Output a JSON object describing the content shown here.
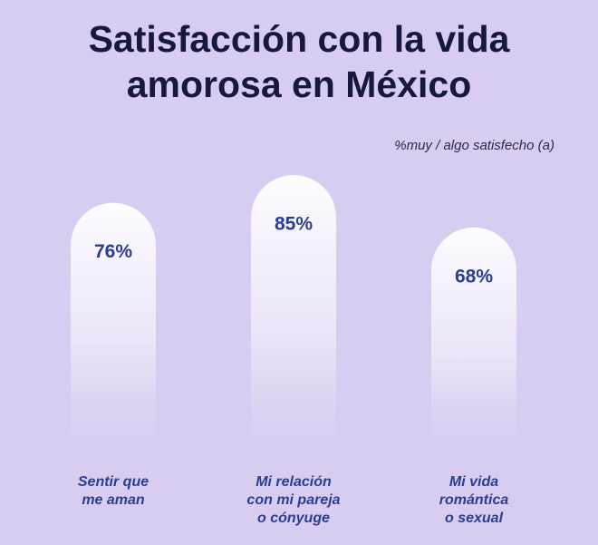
{
  "chart_data": {
    "type": "bar",
    "title": "Satisfacción con la vida\namorosa en México",
    "subtitle": "%muy / algo satisfecho (a)",
    "categories": [
      "Sentir que\nme aman",
      "Mi relación\ncon mi pareja\no cónyuge",
      "Mi vida\nromántica\no sexual"
    ],
    "values": [
      76,
      85,
      68
    ],
    "value_labels": [
      "76%",
      "85%",
      "68%"
    ],
    "color": "#ffffff"
  }
}
